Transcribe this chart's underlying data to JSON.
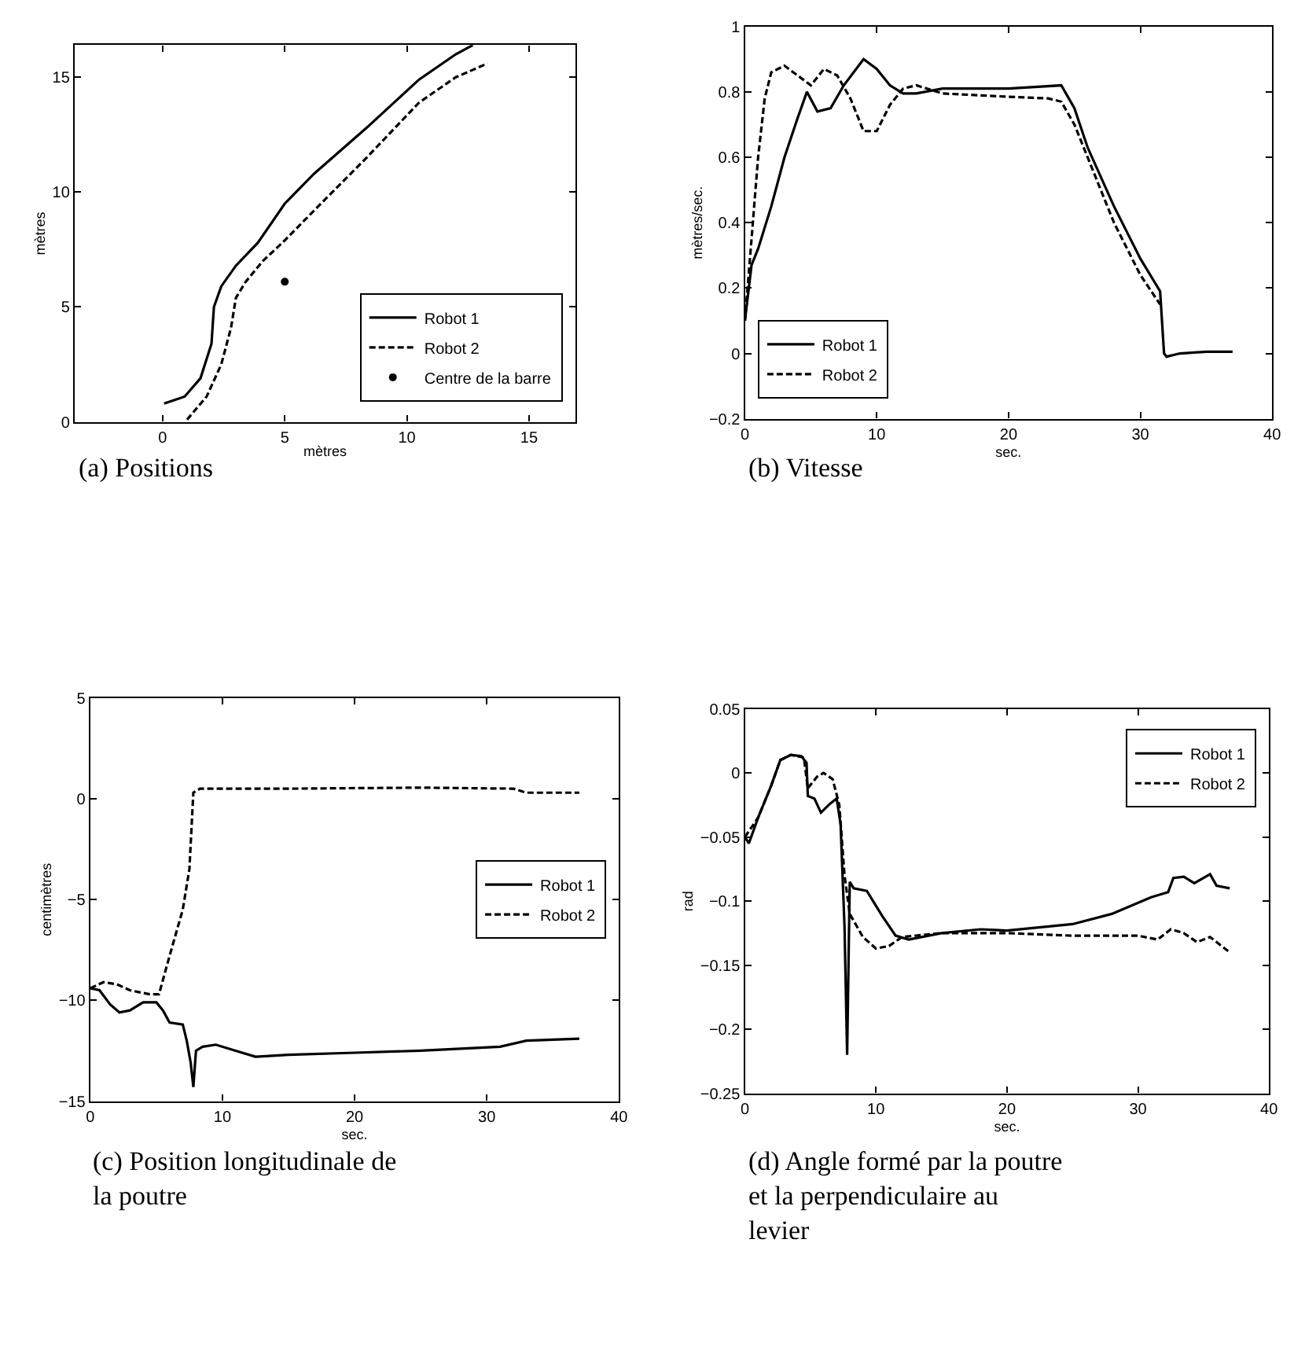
{
  "chart_data": [
    {
      "type": "line",
      "title": "(a) Positions",
      "xlabel": "mètres",
      "ylabel": "mètres",
      "xlim": [
        -3.6,
        16.9
      ],
      "ylim": [
        0,
        16.4
      ],
      "xticks": [
        0,
        5,
        10,
        15
      ],
      "yticks": [
        0,
        5,
        10,
        15
      ],
      "legend": "bottom right",
      "series": [
        {
          "name": "Robot 1",
          "color": "#000000",
          "line_style": "solid",
          "x": [
            0.06,
            0.9,
            1.55,
            2.0,
            2.1,
            2.4,
            3.0,
            3.9,
            5.0,
            6.2,
            8.35,
            10.5,
            12.0,
            12.7
          ],
          "values": [
            0.8,
            1.1,
            1.9,
            3.4,
            5.0,
            5.9,
            6.8,
            7.8,
            9.5,
            10.8,
            12.8,
            14.9,
            16.0,
            16.4
          ]
        },
        {
          "name": "Robot 2",
          "color": "#000000",
          "line_style": "dashed",
          "x": [
            1.0,
            1.8,
            2.4,
            2.8,
            3.0,
            3.4,
            4.1,
            5.0,
            6.2,
            8.35,
            10.5,
            12.0,
            13.3
          ],
          "values": [
            0.1,
            1.1,
            2.5,
            4.1,
            5.4,
            6.1,
            7.0,
            7.9,
            9.2,
            11.5,
            13.9,
            15.0,
            15.6
          ]
        },
        {
          "name": "Centre de la barre",
          "type": "scatter",
          "marker": "circle",
          "color": "#000000",
          "x": [
            5.0
          ],
          "values": [
            6.1
          ]
        }
      ]
    },
    {
      "type": "line",
      "title": "(b) Vitesse",
      "xlabel": "sec.",
      "ylabel": "mètres/sec.",
      "xlim": [
        0,
        40
      ],
      "ylim": [
        -0.2,
        1
      ],
      "xticks": [
        0,
        10,
        20,
        30,
        40
      ],
      "yticks": [
        -0.2,
        0,
        0.2,
        0.4,
        0.6,
        0.8,
        1
      ],
      "legend": "bottom left",
      "series": [
        {
          "name": "Robot 1",
          "color": "#000000",
          "line_style": "solid",
          "x": [
            0,
            0.5,
            1,
            2,
            3,
            4,
            4.7,
            5.5,
            6.5,
            7.5,
            9,
            10,
            11,
            12,
            13,
            15,
            20,
            22,
            24,
            25,
            26,
            28,
            30,
            31.5,
            31.8,
            32,
            33,
            35,
            37
          ],
          "values": [
            0.1,
            0.27,
            0.32,
            0.45,
            0.6,
            0.72,
            0.8,
            0.74,
            0.75,
            0.82,
            0.9,
            0.87,
            0.82,
            0.795,
            0.795,
            0.81,
            0.81,
            0.815,
            0.82,
            0.75,
            0.63,
            0.45,
            0.29,
            0.19,
            0.0,
            -0.01,
            0.0,
            0.005,
            0.005
          ]
        },
        {
          "name": "Robot 2",
          "color": "#000000",
          "line_style": "dashed",
          "x": [
            0,
            0.5,
            1,
            1.5,
            2,
            3,
            4,
            5,
            6,
            7,
            8,
            9,
            10,
            11,
            12,
            13,
            15,
            20,
            23,
            24,
            25,
            26,
            28,
            30,
            31.5
          ],
          "values": [
            0.1,
            0.35,
            0.6,
            0.78,
            0.86,
            0.88,
            0.85,
            0.82,
            0.87,
            0.85,
            0.78,
            0.68,
            0.68,
            0.76,
            0.81,
            0.82,
            0.795,
            0.785,
            0.78,
            0.77,
            0.7,
            0.6,
            0.4,
            0.24,
            0.15
          ]
        }
      ]
    },
    {
      "type": "line",
      "title": "(c) Position longitudinale de la poutre",
      "xlabel": "sec.",
      "ylabel": "centimètres",
      "xlim": [
        0,
        40
      ],
      "ylim": [
        -15,
        5
      ],
      "xticks": [
        0,
        10,
        20,
        30,
        40
      ],
      "yticks": [
        -15,
        -10,
        -5,
        0,
        5
      ],
      "legend": "right",
      "series": [
        {
          "name": "Robot 1",
          "color": "#000000",
          "line_style": "solid",
          "x": [
            0,
            0.7,
            1.5,
            2.2,
            3,
            4,
            5,
            5.5,
            6,
            7,
            7.3,
            7.6,
            7.8,
            8,
            8.5,
            9.5,
            11,
            12.5,
            15,
            20,
            25,
            28,
            31,
            33,
            37
          ],
          "values": [
            -9.4,
            -9.5,
            -10.2,
            -10.6,
            -10.5,
            -10.1,
            -10.1,
            -10.5,
            -11.1,
            -11.2,
            -12,
            -13.1,
            -14.3,
            -12.5,
            -12.3,
            -12.2,
            -12.5,
            -12.8,
            -12.7,
            -12.6,
            -12.5,
            -12.4,
            -12.3,
            -12.0,
            -11.9
          ]
        },
        {
          "name": "Robot 2",
          "color": "#000000",
          "line_style": "dashed",
          "x": [
            0,
            1,
            2,
            3,
            4.5,
            5.2,
            6,
            7,
            7.5,
            7.8,
            8.3,
            15,
            25,
            32,
            33,
            37
          ],
          "values": [
            -9.4,
            -9.1,
            -9.2,
            -9.5,
            -9.7,
            -9.7,
            -7.8,
            -5.5,
            -3.5,
            0.3,
            0.5,
            0.5,
            0.55,
            0.5,
            0.3,
            0.3
          ]
        }
      ]
    },
    {
      "type": "line",
      "title": "(d) Angle formé par la poutre et la perpendiculaire au levier",
      "xlabel": "sec.",
      "ylabel": "rad",
      "xlim": [
        0,
        40
      ],
      "ylim": [
        -0.25,
        0.05
      ],
      "xticks": [
        0,
        10,
        20,
        30,
        40
      ],
      "yticks": [
        -0.25,
        -0.2,
        -0.15,
        -0.1,
        -0.05,
        0,
        0.05
      ],
      "legend": "top right",
      "series": [
        {
          "name": "Robot 1",
          "color": "#000000",
          "line_style": "solid",
          "x": [
            0,
            0.3,
            1,
            2,
            2.7,
            3.5,
            4.3,
            4.7,
            4.8,
            5.3,
            5.8,
            6.5,
            7,
            7.3,
            7.6,
            7.8,
            8.0,
            8.3,
            9.3,
            10.5,
            11.5,
            12.5,
            15,
            18,
            20,
            25,
            28,
            31,
            32.3,
            32.7,
            33.5,
            34.3,
            35.5,
            36,
            37
          ],
          "values": [
            -0.05,
            -0.055,
            -0.035,
            -0.01,
            0.01,
            0.014,
            0.013,
            0.008,
            -0.018,
            -0.02,
            -0.031,
            -0.024,
            -0.02,
            -0.04,
            -0.12,
            -0.22,
            -0.085,
            -0.09,
            -0.092,
            -0.112,
            -0.127,
            -0.13,
            -0.125,
            -0.122,
            -0.123,
            -0.118,
            -0.11,
            -0.097,
            -0.093,
            -0.082,
            -0.081,
            -0.086,
            -0.079,
            -0.088,
            -0.09
          ]
        },
        {
          "name": "Robot 2",
          "color": "#000000",
          "line_style": "dashed",
          "x": [
            0,
            1,
            2,
            2.7,
            3.5,
            4.5,
            4.8,
            5.5,
            6,
            6.7,
            7.2,
            7.6,
            8.0,
            9,
            10,
            11,
            12,
            15,
            20,
            25,
            30,
            31.5,
            32.5,
            33.5,
            34.5,
            35.5,
            37
          ],
          "values": [
            -0.05,
            -0.035,
            -0.01,
            0.01,
            0.014,
            0.012,
            -0.012,
            -0.003,
            0.0,
            -0.005,
            -0.025,
            -0.08,
            -0.11,
            -0.128,
            -0.137,
            -0.135,
            -0.128,
            -0.125,
            -0.125,
            -0.127,
            -0.127,
            -0.13,
            -0.122,
            -0.125,
            -0.132,
            -0.128,
            -0.14
          ]
        }
      ]
    }
  ]
}
